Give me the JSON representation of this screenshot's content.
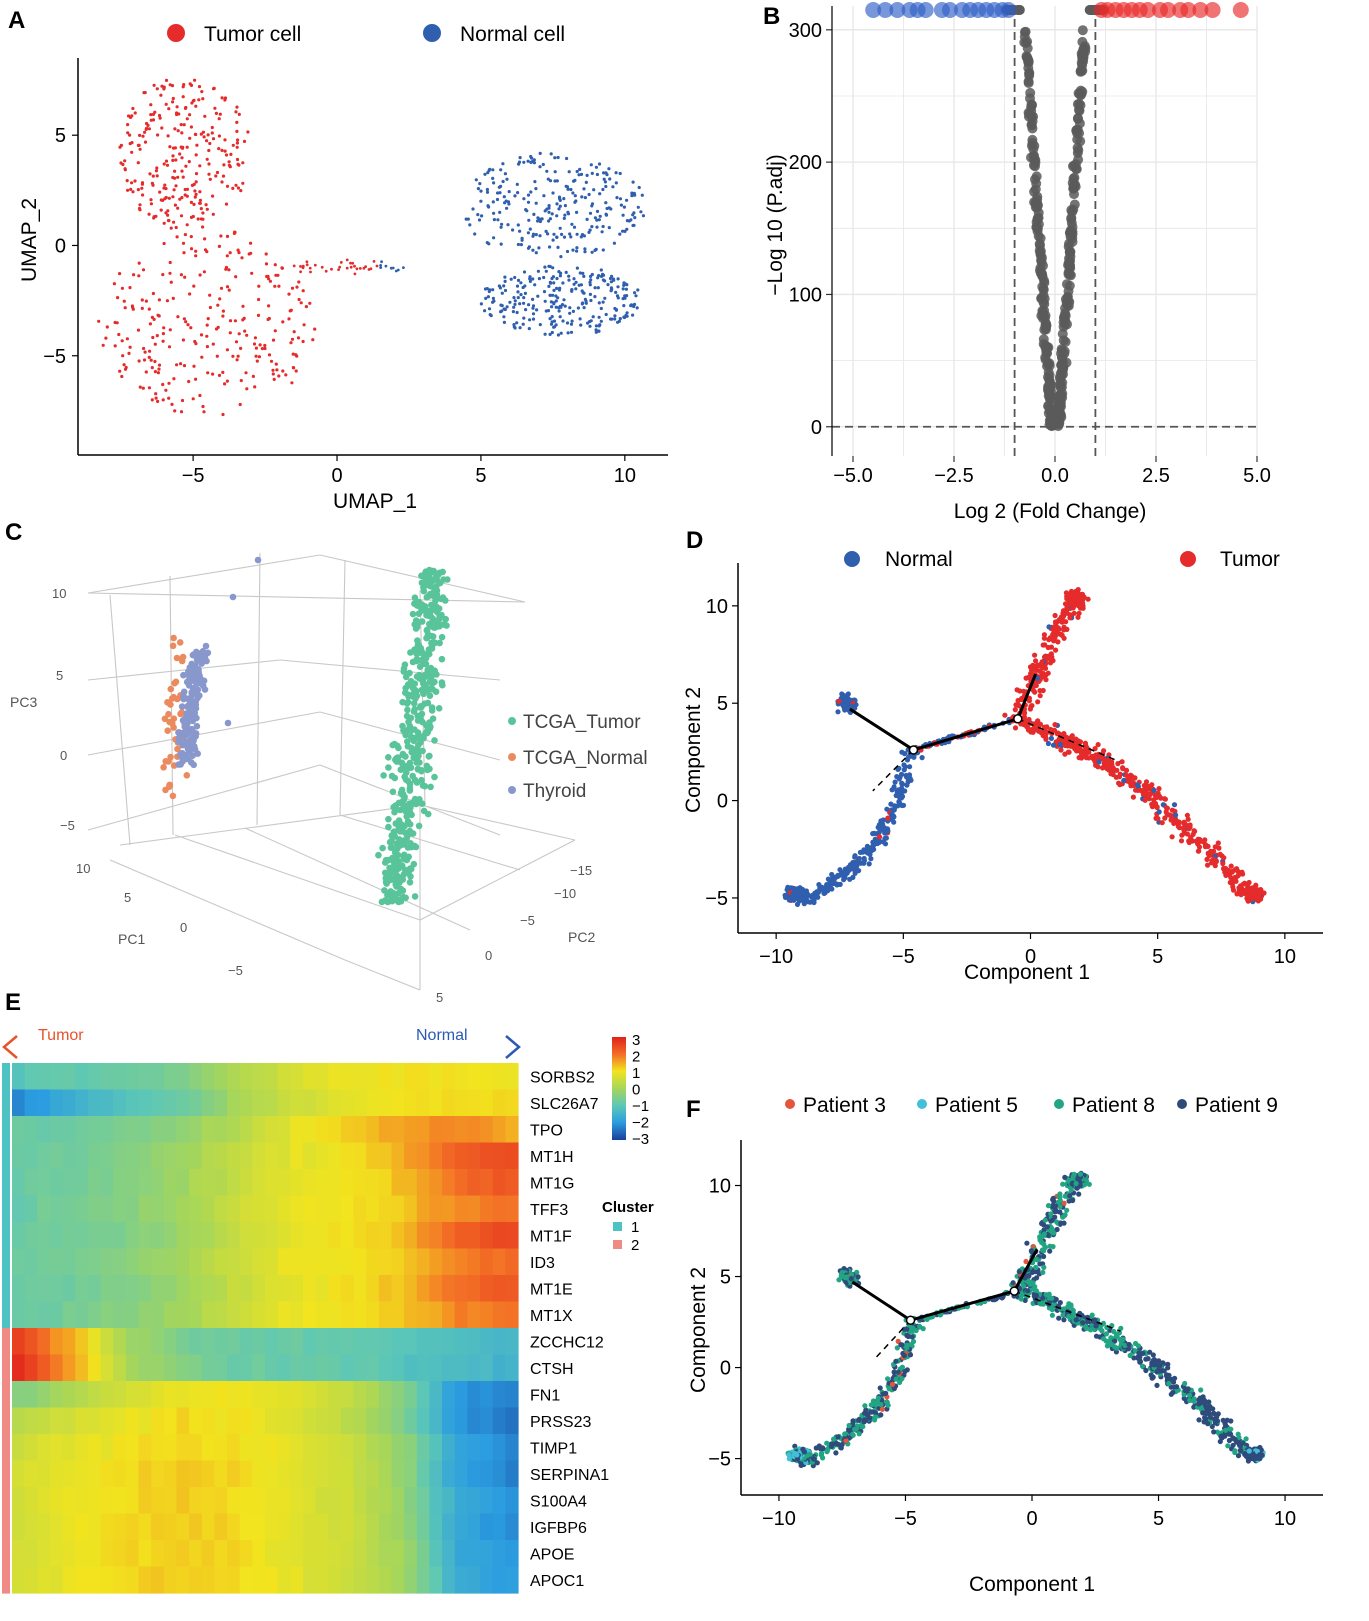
{
  "colors": {
    "tumor": "#e52b2b",
    "normal": "#2f5fae",
    "grey": "#5b5b5b",
    "tcga_tumor": "#59c49a",
    "tcga_normal": "#ec8a5f",
    "thyroid": "#8898cc",
    "patient3": "#e4553c",
    "patient5": "#43bfd9",
    "patient8": "#21a583",
    "patient9": "#2e4b7c",
    "cluster1": "#4dc3c3",
    "cluster2": "#f08a85"
  },
  "chart_data": [
    {
      "panel": "A",
      "type": "scatter",
      "xlabel": "UMAP_1",
      "ylabel": "UMAP_2",
      "xlim": [
        -9,
        11.5
      ],
      "ylim": [
        -9.5,
        8.5
      ],
      "xticks": [
        "−5",
        "0",
        "5",
        "10"
      ],
      "yticks": [
        "5",
        "0",
        "−5"
      ],
      "legend": [
        {
          "label": "Tumor cell",
          "color": "tumor"
        },
        {
          "label": "Normal cell",
          "color": "normal"
        }
      ],
      "clusters": [
        {
          "name": "Tumor cell",
          "color": "tumor",
          "cx": -5.3,
          "cy": 4.2,
          "rx": 2.3,
          "ry": 3.5
        },
        {
          "name": "Tumor cell",
          "color": "tumor",
          "cx": -4.5,
          "cy": -3.5,
          "rx": 3.8,
          "ry": 4.3
        },
        {
          "name": "Normal cell",
          "color": "normal",
          "cx": 7.5,
          "cy": 1.8,
          "rx": 3.3,
          "ry": 2.4
        },
        {
          "name": "Normal cell",
          "color": "normal",
          "cx": 7.8,
          "cy": -2.5,
          "rx": 2.8,
          "ry": 1.6
        }
      ]
    },
    {
      "panel": "B",
      "type": "scatter",
      "xlabel": "Log 2 (Fold  Change)",
      "ylabel": "−Log 10 (P.adj)",
      "xlim": [
        -5,
        5
      ],
      "ylim": [
        -10,
        318
      ],
      "xticks": [
        "−5.0",
        "−2.5",
        "0.0",
        "2.5",
        "5.0"
      ],
      "yticks": [
        "0",
        "100",
        "200",
        "300"
      ],
      "fc_cutoff": [
        -1,
        1
      ],
      "p_cutoff": 0,
      "down_points_x": [
        -4.5,
        -4.2,
        -3.9,
        -3.6,
        -3.4,
        -3.2,
        -2.8,
        -2.6,
        -2.3,
        -2.1,
        -1.9,
        -1.7,
        -1.5,
        -1.3,
        -1.15
      ],
      "up_points_x": [
        1.15,
        1.3,
        1.5,
        1.7,
        1.9,
        2.1,
        2.3,
        2.6,
        2.8,
        3.1,
        3.3,
        3.6,
        3.9,
        4.6
      ],
      "top_y": 315
    },
    {
      "panel": "C",
      "type": "scatter",
      "axis_labels": {
        "pc1": "PC1",
        "pc2": "PC2",
        "pc3": "PC3"
      },
      "pc3_ticks": [
        "10",
        "5",
        "0",
        "−5"
      ],
      "pc1_ticks": [
        "10",
        "5",
        "0",
        "−5"
      ],
      "pc2_ticks": [
        "−15",
        "−10",
        "−5",
        "0",
        "5"
      ],
      "legend": [
        {
          "label": "TCGA_Tumor",
          "color": "tcga_tumor"
        },
        {
          "label": "TCGA_Normal",
          "color": "tcga_normal"
        },
        {
          "label": "Thyroid",
          "color": "thyroid"
        }
      ]
    },
    {
      "panel": "D",
      "type": "scatter",
      "xlabel": "Component 1",
      "ylabel": "Component 2",
      "xlim": [
        -11.5,
        11.5
      ],
      "ylim": [
        -6.8,
        12.2
      ],
      "xticks": [
        -10,
        -5,
        0,
        5,
        10
      ],
      "yticks": [
        10,
        5,
        0,
        -5
      ],
      "xtick_labels": [
        "−10",
        "−5",
        "0",
        "5",
        "10"
      ],
      "ytick_labels": [
        "10",
        "5",
        "0",
        "−5"
      ],
      "legend": [
        {
          "label": "Normal",
          "color": "normal"
        },
        {
          "label": "Tumor",
          "color": "tumor"
        }
      ],
      "branch_points": [
        [
          -4.6,
          2.6
        ],
        [
          -0.5,
          4.2
        ]
      ]
    },
    {
      "panel": "E",
      "type": "heatmap",
      "direction_labels": {
        "left": "Tumor",
        "right": "Normal"
      },
      "colorbar": {
        "min": -3,
        "max": 3,
        "ticks": [
          "3",
          "2",
          "1",
          "0",
          "−1",
          "−2",
          "−3"
        ]
      },
      "cluster_legend": {
        "title": "Cluster",
        "items": [
          {
            "label": "1",
            "color": "cluster1"
          },
          {
            "label": "2",
            "color": "cluster2"
          }
        ]
      },
      "genes": [
        "SORBS2",
        "SLC26A7",
        "TPO",
        "MT1H",
        "MT1G",
        "TFF3",
        "MT1F",
        "ID3",
        "MT1E",
        "MT1X",
        "ZCCHC12",
        "CTSH",
        "FN1",
        "PRSS23",
        "TIMP1",
        "SERPINA1",
        "S100A4",
        "IGFBP6",
        "APOE",
        "APOC1"
      ],
      "gene_cluster": [
        1,
        1,
        1,
        1,
        1,
        1,
        1,
        1,
        1,
        1,
        2,
        2,
        2,
        2,
        2,
        2,
        2,
        2,
        2,
        2
      ],
      "row_profiles": [
        [
          -1.0,
          -0.9,
          -0.8,
          -0.5,
          0.1,
          0.6,
          0.9,
          1.0,
          1.0,
          0.9
        ],
        [
          -2.2,
          -1.6,
          -1.1,
          -0.8,
          0.0,
          0.5,
          0.8,
          1.0,
          1.1,
          1.0
        ],
        [
          -0.8,
          -0.8,
          -0.6,
          -0.3,
          0.2,
          0.8,
          1.2,
          1.6,
          1.8,
          1.5
        ],
        [
          -0.8,
          -0.7,
          -0.5,
          -0.1,
          0.4,
          0.8,
          1.0,
          1.4,
          2.2,
          2.5
        ],
        [
          -0.8,
          -0.7,
          -0.5,
          -0.1,
          0.4,
          0.8,
          1.0,
          1.3,
          2.0,
          2.3
        ],
        [
          -0.8,
          -0.6,
          -0.4,
          0.0,
          0.5,
          0.9,
          1.0,
          1.2,
          1.8,
          2.0
        ],
        [
          -0.8,
          -0.7,
          -0.5,
          -0.1,
          0.4,
          0.8,
          1.0,
          1.3,
          2.2,
          2.5
        ],
        [
          -0.8,
          -0.6,
          -0.4,
          0.0,
          0.5,
          0.9,
          1.0,
          1.2,
          1.8,
          2.1
        ],
        [
          -0.8,
          -0.7,
          -0.5,
          -0.1,
          0.4,
          0.8,
          1.0,
          1.3,
          2.0,
          2.3
        ],
        [
          -0.8,
          -0.6,
          -0.4,
          0.0,
          0.5,
          0.9,
          1.0,
          1.2,
          1.8,
          2.0
        ],
        [
          2.6,
          1.4,
          0.0,
          -0.6,
          -0.8,
          -0.8,
          -0.9,
          -1.0,
          -1.2,
          -1.4
        ],
        [
          2.8,
          1.6,
          0.1,
          -0.5,
          -0.8,
          -0.8,
          -0.9,
          -1.1,
          -1.3,
          -1.5
        ],
        [
          -0.4,
          0.1,
          0.6,
          0.9,
          1.0,
          0.8,
          0.4,
          -0.4,
          -2.0,
          -2.3
        ],
        [
          0.2,
          0.6,
          0.9,
          1.1,
          1.0,
          0.7,
          0.3,
          -0.5,
          -2.0,
          -2.4
        ],
        [
          0.5,
          0.8,
          1.0,
          1.1,
          1.0,
          0.8,
          0.5,
          -0.2,
          -1.8,
          -2.2
        ],
        [
          0.6,
          0.9,
          1.1,
          1.2,
          1.1,
          0.8,
          0.5,
          -0.2,
          -1.8,
          -2.3
        ],
        [
          0.6,
          0.9,
          1.1,
          1.2,
          1.1,
          0.8,
          0.5,
          -0.1,
          -1.7,
          -2.1
        ],
        [
          0.5,
          0.9,
          1.1,
          1.2,
          1.1,
          0.8,
          0.5,
          -0.1,
          -1.8,
          -2.2
        ],
        [
          0.6,
          0.9,
          1.1,
          1.2,
          1.1,
          0.8,
          0.5,
          0.0,
          -1.7,
          -2.0
        ],
        [
          0.6,
          0.9,
          1.1,
          1.2,
          1.1,
          0.8,
          0.5,
          0.0,
          -1.6,
          -2.0
        ]
      ]
    },
    {
      "panel": "F",
      "type": "scatter",
      "xlabel": "Component 1",
      "ylabel": "Component 2",
      "xlim": [
        -11.5,
        11.5
      ],
      "ylim": [
        -7.0,
        12.5
      ],
      "xticks": [
        -10,
        -5,
        0,
        5,
        10
      ],
      "yticks": [
        10,
        5,
        0,
        -5
      ],
      "xtick_labels": [
        "−10",
        "−5",
        "0",
        "5",
        "10"
      ],
      "ytick_labels": [
        "10",
        "5",
        "0",
        "−5"
      ],
      "legend": [
        {
          "label": "Patient 3",
          "color": "patient3"
        },
        {
          "label": "Patient 5",
          "color": "patient5"
        },
        {
          "label": "Patient 8",
          "color": "patient8"
        },
        {
          "label": "Patient 9",
          "color": "patient9"
        }
      ],
      "branch_points": [
        [
          -4.8,
          2.6
        ],
        [
          -0.7,
          4.2
        ]
      ]
    }
  ],
  "panel_labels": [
    "A",
    "B",
    "C",
    "D",
    "E",
    "F"
  ]
}
